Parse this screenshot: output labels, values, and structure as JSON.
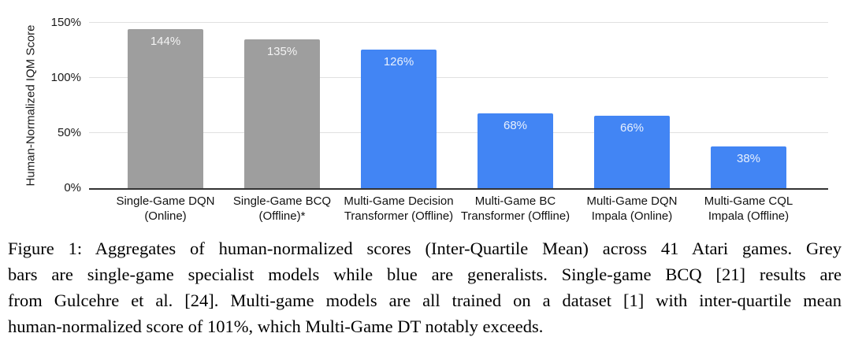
{
  "chart_data": {
    "type": "bar",
    "title": "",
    "xlabel": "",
    "ylabel": "Human-Normalized IQM Score",
    "ylim": [
      0,
      150
    ],
    "grid": true,
    "legend": "none",
    "yticks": [
      {
        "value": 0,
        "label": "0%"
      },
      {
        "value": 50,
        "label": "50%"
      },
      {
        "value": 100,
        "label": "100%"
      },
      {
        "value": 150,
        "label": "150%"
      }
    ],
    "categories": [
      "Single-Game DQN (Online)",
      "Single-Game BCQ (Offline)*",
      "Multi-Game Decision Transformer (Offline)",
      "Multi-Game BC Transformer (Offline)",
      "Multi-Game DQN Impala (Online)",
      "Multi-Game CQL Impala (Offline)"
    ],
    "category_lines": [
      [
        "Single-Game DQN",
        "(Online)"
      ],
      [
        "Single-Game BCQ",
        "(Offline)*"
      ],
      [
        "Multi-Game Decision",
        "Transformer (Offline)"
      ],
      [
        "Multi-Game BC",
        "Transformer (Offline)"
      ],
      [
        "Multi-Game DQN",
        "Impala (Online)"
      ],
      [
        "Multi-Game CQL",
        "Impala (Offline)"
      ]
    ],
    "values": [
      144,
      135,
      126,
      68,
      66,
      38
    ],
    "value_labels": [
      "144%",
      "135%",
      "126%",
      "68%",
      "66%",
      "38%"
    ],
    "bar_colors": [
      "#9e9e9e",
      "#9e9e9e",
      "#4285f4",
      "#4285f4",
      "#4285f4",
      "#4285f4"
    ],
    "colors": {
      "grey_bar": "#9e9e9e",
      "blue_bar": "#4285f4",
      "gridline": "#e0e0e0",
      "axis_line": "#333333",
      "axis_text": "#1a1a1a",
      "value_label": "#ffffff"
    }
  },
  "caption": {
    "lines": [
      "Figure 1: Aggregates of human-normalized scores (Inter-Quartile Mean) across 41 Atari games. Grey",
      "bars are single-game specialist models while blue are generalists. Single-game BCQ [21] results are",
      "from Gulcehre et al. [24]. Multi-game models are all trained on a dataset [1] with inter-quartile mean",
      "human-normalized score of 101%, which Multi-Game DT notably exceeds."
    ],
    "text": "Figure 1: Aggregates of human-normalized scores (Inter-Quartile Mean) across 41 Atari games. Grey bars are single-game specialist models while blue are generalists. Single-game BCQ [21] results are from Gulcehre et al. [24]. Multi-game models are all trained on a dataset [1] with inter-quartile mean human-normalized score of 101%, which Multi-Game DT notably exceeds."
  }
}
